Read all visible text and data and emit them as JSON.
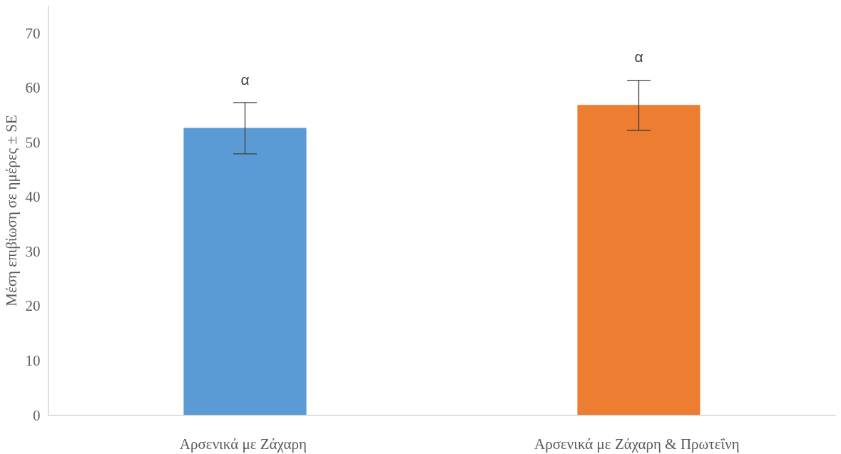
{
  "chart_data": {
    "type": "bar",
    "ylabel": "Μέση επιβίωση σε ημέρες ± SE",
    "categories": [
      "Αρσενικά με  Ζάχαρη",
      "Αρσενικά με  Ζάχαρη & Πρωτεΐνη"
    ],
    "values": [
      52.6,
      56.8
    ],
    "colors": [
      "#5b9bd5",
      "#ed7d31"
    ],
    "errors": [
      4.7,
      4.6
    ],
    "ylim": [
      0,
      75
    ],
    "yticks": [
      0,
      10,
      20,
      30,
      40,
      50,
      60,
      70
    ],
    "grid": false,
    "annotations": [
      "α",
      "α"
    ]
  }
}
